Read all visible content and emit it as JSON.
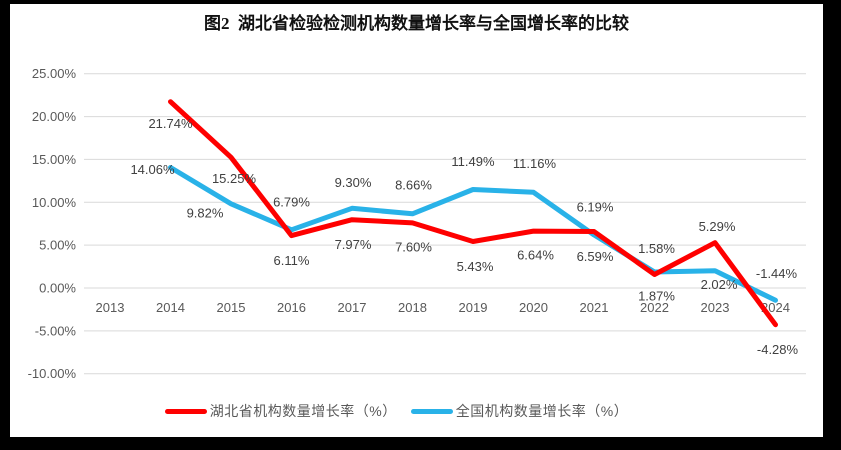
{
  "title": "图2  湖北省检验检测机构数量增长率与全国增长率的比较",
  "colors": {
    "hubei_line": "#FE0000",
    "national_line": "#29B2E8",
    "gridline": "#D9D9D9",
    "axis_text": "#595959",
    "data_label_text": "#404040",
    "frame": "#000000",
    "background": "#FFFFFF"
  },
  "chart_data": {
    "type": "line",
    "title": "图2  湖北省检验检测机构数量增长率与全国增长率的比较",
    "categories": [
      "2013",
      "2014",
      "2015",
      "2016",
      "2017",
      "2018",
      "2019",
      "2020",
      "2021",
      "2022",
      "2023",
      "2024"
    ],
    "series": [
      {
        "name": "湖北省机构数量增长率（%）",
        "color": "#FE0000",
        "values": [
          null,
          21.74,
          15.25,
          6.11,
          7.97,
          7.6,
          5.43,
          6.64,
          6.59,
          1.58,
          5.29,
          -4.28
        ],
        "labels": [
          "",
          "21.74%",
          "15.25%",
          "6.11%",
          "7.97%",
          "7.60%",
          "5.43%",
          "6.64%",
          "6.59%",
          "1.58%",
          "5.29%",
          "-4.28%"
        ]
      },
      {
        "name": "全国机构数量增长率（%）",
        "color": "#29B2E8",
        "values": [
          null,
          14.06,
          9.82,
          6.79,
          9.3,
          8.66,
          11.49,
          11.16,
          6.19,
          1.87,
          2.02,
          -1.44
        ],
        "labels": [
          "",
          "14.06%",
          "9.82%",
          "6.79%",
          "9.30%",
          "8.66%",
          "11.49%",
          "11.16%",
          "6.19%",
          "1.87%",
          "2.02%",
          "-1.44%"
        ]
      }
    ],
    "y_ticks": [
      {
        "label": "25.00%",
        "value": 25
      },
      {
        "label": "20.00%",
        "value": 20
      },
      {
        "label": "15.00%",
        "value": 15
      },
      {
        "label": "10.00%",
        "value": 10
      },
      {
        "label": "5.00%",
        "value": 5
      },
      {
        "label": "0.00%",
        "value": 0
      },
      {
        "label": "-5.00%",
        "value": -5
      },
      {
        "label": "-10.00%",
        "value": -10
      }
    ],
    "ylim": [
      -10,
      25
    ],
    "xlabel": "",
    "ylabel": "",
    "grid": true,
    "data_labels": true,
    "legend_position": "bottom"
  }
}
